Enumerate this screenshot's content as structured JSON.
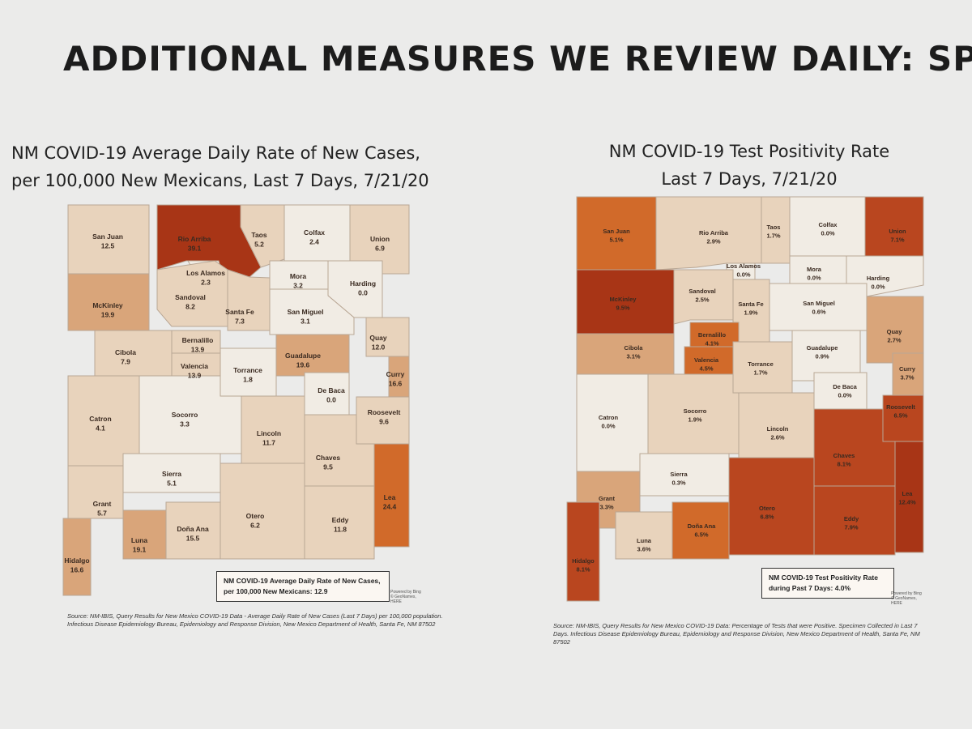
{
  "slide": {
    "title": "ADDITIONAL MEASURES WE REVIEW DAILY: SPI"
  },
  "map_left": {
    "title_line1": "NM COVID-19 Average Daily Rate of New Cases,",
    "title_line2": "per 100,000 New Mexicans, Last 7 Days, 7/21/20",
    "legend": "NM COVID-19 Average Daily Rate of New Cases, per 100,000 New Mexicans: 12.9",
    "credit": "Powered by Bing © GeoNames, HERE",
    "source": "Source: NM-IBIS, Query Results for New Mexico COVID-19 Data - Average Daily Rate of New Cases (Last 7 Days) per 100,000 population. Infectious Disease Epidemiology Bureau, Epidemiology and Response Division, New Mexico Department of Health, Santa Fe, NM 87502",
    "counties": [
      {
        "name": "San Juan",
        "value": "12.5"
      },
      {
        "name": "Rio Arriba",
        "value": "39.1"
      },
      {
        "name": "Taos",
        "value": "5.2"
      },
      {
        "name": "Colfax",
        "value": "2.4"
      },
      {
        "name": "Union",
        "value": "6.9"
      },
      {
        "name": "Los Alamos",
        "value": "2.3"
      },
      {
        "name": "Mora",
        "value": "3.2"
      },
      {
        "name": "Harding",
        "value": "0.0"
      },
      {
        "name": "McKinley",
        "value": "19.9"
      },
      {
        "name": "Sandoval",
        "value": "8.2"
      },
      {
        "name": "Santa Fe",
        "value": "7.3"
      },
      {
        "name": "San Miguel",
        "value": "3.1"
      },
      {
        "name": "Quay",
        "value": "12.0"
      },
      {
        "name": "Cibola",
        "value": "7.9"
      },
      {
        "name": "Bernalillo",
        "value": "13.9"
      },
      {
        "name": "Valencia",
        "value": "13.9"
      },
      {
        "name": "Torrance",
        "value": "1.8"
      },
      {
        "name": "Guadalupe",
        "value": "19.6"
      },
      {
        "name": "Curry",
        "value": "16.6"
      },
      {
        "name": "De Baca",
        "value": "0.0"
      },
      {
        "name": "Roosevelt",
        "value": "9.6"
      },
      {
        "name": "Catron",
        "value": "4.1"
      },
      {
        "name": "Socorro",
        "value": "3.3"
      },
      {
        "name": "Lincoln",
        "value": "11.7"
      },
      {
        "name": "Chaves",
        "value": "9.5"
      },
      {
        "name": "Sierra",
        "value": "5.1"
      },
      {
        "name": "Lea",
        "value": "24.4"
      },
      {
        "name": "Grant",
        "value": "5.7"
      },
      {
        "name": "Otero",
        "value": "6.2"
      },
      {
        "name": "Doña Ana",
        "value": "15.5"
      },
      {
        "name": "Eddy",
        "value": "11.8"
      },
      {
        "name": "Luna",
        "value": "19.1"
      },
      {
        "name": "Hidalgo",
        "value": "16.6"
      }
    ]
  },
  "map_right": {
    "title_line1": "NM COVID-19 Test Positivity Rate",
    "title_line2": "Last 7 Days, 7/21/20",
    "legend": "NM COVID-19 Test Positivity Rate during Past 7 Days: 4.0%",
    "credit": "Powered by Bing © GeoNames, HERE",
    "source": "Source: NM-IBIS, Query Results for New Mexico COVID-19 Data: Percentage of Tests that were Positive. Specimen Collected in Last 7 Days. Infectious Disease Epidemiology Bureau, Epidemiology and Response Division, New Mexico Department of Health, Santa Fe, NM 87502",
    "counties": [
      {
        "name": "San Juan",
        "value": "5.1%"
      },
      {
        "name": "Rio Arriba",
        "value": "2.9%"
      },
      {
        "name": "Taos",
        "value": "1.7%"
      },
      {
        "name": "Colfax",
        "value": "0.0%"
      },
      {
        "name": "Union",
        "value": "7.1%"
      },
      {
        "name": "Los Alamos",
        "value": "0.0%"
      },
      {
        "name": "Mora",
        "value": "0.0%"
      },
      {
        "name": "Harding",
        "value": "0.0%"
      },
      {
        "name": "McKinley",
        "value": "9.5%"
      },
      {
        "name": "Sandoval",
        "value": "2.5%"
      },
      {
        "name": "Santa Fe",
        "value": "1.9%"
      },
      {
        "name": "San Miguel",
        "value": "0.6%"
      },
      {
        "name": "Quay",
        "value": "2.7%"
      },
      {
        "name": "Cibola",
        "value": "3.1%"
      },
      {
        "name": "Bernalillo",
        "value": "4.1%"
      },
      {
        "name": "Valencia",
        "value": "4.5%"
      },
      {
        "name": "Torrance",
        "value": "1.7%"
      },
      {
        "name": "Guadalupe",
        "value": "0.9%"
      },
      {
        "name": "Curry",
        "value": "3.7%"
      },
      {
        "name": "De Baca",
        "value": "0.0%"
      },
      {
        "name": "Roosevelt",
        "value": "6.5%"
      },
      {
        "name": "Catron",
        "value": "0.0%"
      },
      {
        "name": "Socorro",
        "value": "1.9%"
      },
      {
        "name": "Lincoln",
        "value": "2.6%"
      },
      {
        "name": "Chaves",
        "value": "8.1%"
      },
      {
        "name": "Sierra",
        "value": "0.3%"
      },
      {
        "name": "Lea",
        "value": "12.4%"
      },
      {
        "name": "Grant",
        "value": "3.3%"
      },
      {
        "name": "Otero",
        "value": "6.8%"
      },
      {
        "name": "Doña Ana",
        "value": "6.5%"
      },
      {
        "name": "Eddy",
        "value": "7.9%"
      },
      {
        "name": "Luna",
        "value": "3.6%"
      },
      {
        "name": "Hidalgo",
        "value": "8.1%"
      }
    ]
  },
  "colors": {
    "lightest": "#f1ece4",
    "light": "#e8d3bc",
    "mid": "#d9a57a",
    "orange": "#d16a2a",
    "dark": "#b9461f",
    "darkest": "#a83516"
  }
}
